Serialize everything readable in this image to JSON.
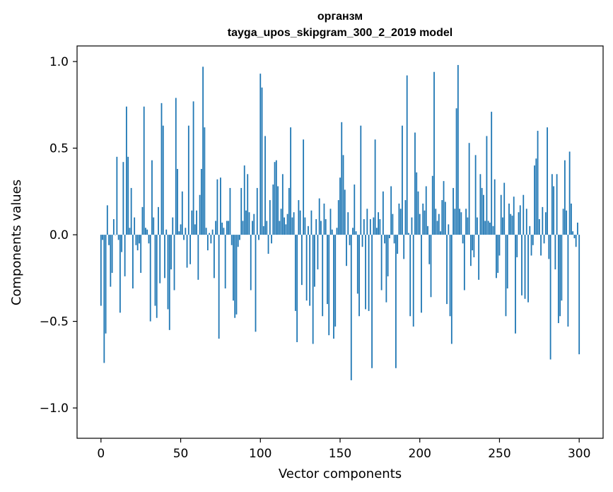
{
  "chart_data": {
    "type": "bar",
    "title": "органзм",
    "subtitle": "tayga_upos_skipgram_300_2_2019 model",
    "xlabel": "Vector components",
    "ylabel": "Components values",
    "xlim": [
      -15,
      315
    ],
    "ylim": [
      -1.175,
      1.09
    ],
    "x_ticks": [
      0,
      50,
      100,
      150,
      200,
      250,
      300
    ],
    "x_tick_labels": [
      "0",
      "50",
      "100",
      "150",
      "200",
      "250",
      "300"
    ],
    "y_ticks": [
      1.0,
      0.5,
      0.0,
      -0.5,
      -1.0
    ],
    "y_tick_labels": [
      "1.0",
      "0.5",
      "0.0",
      "−0.5",
      "−1.0"
    ],
    "bar_color": "#1f77b4",
    "x": "0..299",
    "values": [
      -0.41,
      -0.03,
      -0.74,
      -0.57,
      0.17,
      -0.06,
      -0.3,
      -0.22,
      0.09,
      0.0,
      0.45,
      -0.03,
      -0.45,
      -0.1,
      0.42,
      -0.24,
      0.74,
      0.45,
      0.04,
      0.27,
      -0.31,
      0.1,
      -0.06,
      -0.09,
      -0.05,
      -0.22,
      0.16,
      0.74,
      0.04,
      0.03,
      -0.05,
      -0.5,
      0.43,
      0.1,
      -0.41,
      -0.48,
      0.16,
      -0.28,
      0.76,
      0.63,
      -0.25,
      0.03,
      -0.43,
      -0.55,
      -0.2,
      0.1,
      -0.32,
      0.79,
      0.38,
      0.02,
      0.06,
      0.25,
      -0.03,
      0.04,
      -0.19,
      0.63,
      -0.17,
      0.14,
      0.77,
      0.06,
      0.14,
      -0.26,
      0.23,
      0.38,
      0.97,
      0.62,
      0.04,
      -0.09,
      0.01,
      -0.05,
      0.03,
      -0.25,
      0.08,
      0.32,
      -0.6,
      0.33,
      0.07,
      0.04,
      -0.31,
      0.08,
      0.08,
      0.27,
      -0.06,
      -0.38,
      -0.48,
      -0.46,
      -0.07,
      -0.03,
      0.27,
      0.08,
      0.4,
      0.14,
      0.35,
      0.13,
      -0.32,
      0.08,
      0.12,
      -0.56,
      0.27,
      -0.03,
      0.93,
      0.85,
      0.05,
      0.57,
      0.08,
      -0.11,
      0.2,
      -0.05,
      0.29,
      0.42,
      0.43,
      0.28,
      0.08,
      0.15,
      0.35,
      0.1,
      0.06,
      0.12,
      0.27,
      0.62,
      0.1,
      0.13,
      -0.44,
      -0.62,
      0.2,
      0.14,
      -0.29,
      0.55,
      0.1,
      -0.38,
      0.05,
      -0.41,
      0.14,
      -0.63,
      -0.3,
      0.09,
      -0.2,
      0.21,
      0.08,
      -0.47,
      0.18,
      0.09,
      -0.4,
      -0.58,
      0.15,
      0.03,
      -0.6,
      -0.53,
      0.04,
      0.2,
      0.33,
      0.65,
      0.46,
      0.26,
      -0.18,
      0.13,
      -0.06,
      -0.84,
      0.04,
      0.29,
      0.02,
      -0.34,
      -0.47,
      0.63,
      -0.07,
      0.09,
      -0.43,
      0.15,
      -0.44,
      0.09,
      -0.77,
      0.1,
      0.55,
      0.04,
      0.13,
      0.09,
      -0.32,
      0.25,
      -0.05,
      -0.39,
      -0.24,
      -0.02,
      0.28,
      0.12,
      -0.05,
      -0.77,
      -0.11,
      0.18,
      0.15,
      0.63,
      -0.14,
      0.2,
      0.92,
      0.01,
      -0.47,
      0.1,
      -0.53,
      0.59,
      0.36,
      0.25,
      0.12,
      -0.45,
      0.18,
      0.14,
      0.28,
      0.05,
      -0.17,
      -0.36,
      0.34,
      0.94,
      0.15,
      0.08,
      0.12,
      0.02,
      0.2,
      0.31,
      0.19,
      -0.4,
      0.06,
      -0.47,
      -0.63,
      0.27,
      0.15,
      0.73,
      0.98,
      0.15,
      0.13,
      -0.05,
      -0.32,
      0.15,
      0.1,
      0.53,
      -0.18,
      -0.09,
      -0.13,
      0.46,
      0.1,
      -0.26,
      0.35,
      0.27,
      0.23,
      0.08,
      0.57,
      0.08,
      0.07,
      0.71,
      0.05,
      0.32,
      -0.25,
      -0.22,
      -0.12,
      0.23,
      0.1,
      0.3,
      -0.47,
      -0.31,
      0.18,
      0.12,
      0.11,
      0.22,
      -0.57,
      -0.13,
      0.13,
      0.17,
      -0.35,
      0.23,
      -0.37,
      0.15,
      -0.39,
      0.05,
      -0.12,
      -0.06,
      0.4,
      0.44,
      0.6,
      0.09,
      -0.12,
      0.16,
      -0.05,
      0.13,
      0.62,
      -0.14,
      -0.72,
      0.35,
      0.28,
      -0.2,
      0.35,
      -0.51,
      -0.47,
      -0.38,
      0.15,
      0.43,
      0.14,
      -0.53,
      0.48,
      0.18,
      0.02,
      -0.02,
      -0.07,
      0.07,
      -0.69
    ]
  }
}
